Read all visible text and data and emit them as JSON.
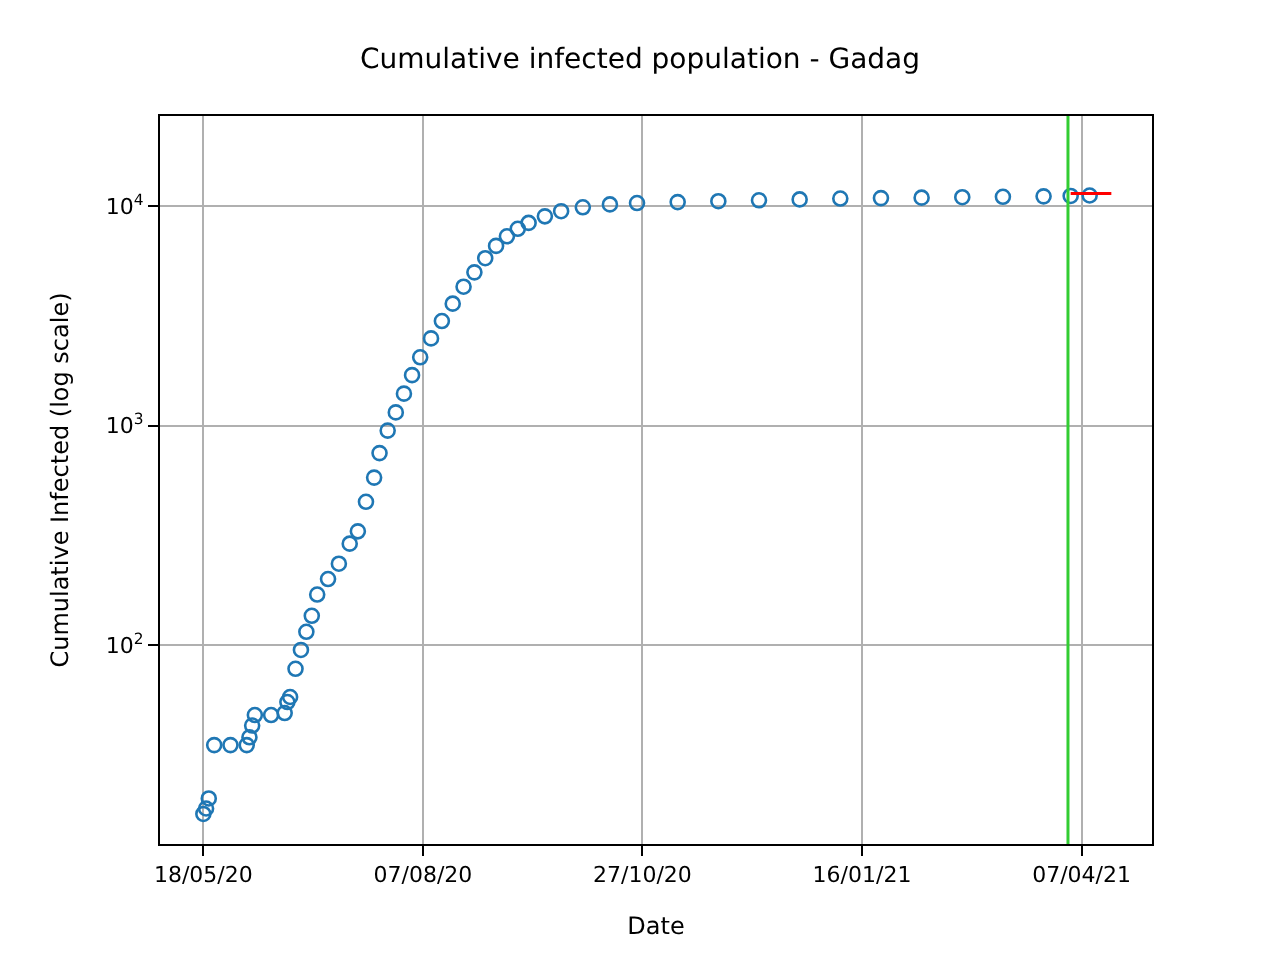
{
  "chart_data": {
    "type": "scatter",
    "title": "Cumulative infected population - Gadag",
    "xlabel": "Date",
    "ylabel": "Cumulative Infected (log scale)",
    "log": "y",
    "grid": true,
    "marker": "circle",
    "xlim": [
      "2020-05-02",
      "2021-05-03"
    ],
    "xticks": [
      {
        "value": "2020-05-18",
        "label": "18/05/20"
      },
      {
        "value": "2020-08-07",
        "label": "07/08/20"
      },
      {
        "value": "2020-10-27",
        "label": "27/10/20"
      },
      {
        "value": "2021-01-16",
        "label": "16/01/21"
      },
      {
        "value": "2021-04-07",
        "label": "07/04/21"
      }
    ],
    "ylim": [
      12.4,
      25800
    ],
    "yticks": [
      {
        "value": 100,
        "label": "10$^{2}$"
      },
      {
        "value": 1000,
        "label": "10$^{3}$"
      },
      {
        "value": 10000,
        "label": "10$^{4}$"
      }
    ],
    "series": [
      {
        "color": "#1f77b4",
        "x": [
          "2020-05-18",
          "2020-05-19",
          "2020-05-20",
          "2020-05-22",
          "2020-05-28",
          "2020-06-03",
          "2020-06-04",
          "2020-06-05",
          "2020-06-06",
          "2020-06-12",
          "2020-06-17",
          "2020-06-18",
          "2020-06-19",
          "2020-06-21",
          "2020-06-23",
          "2020-06-25",
          "2020-06-27",
          "2020-06-29",
          "2020-07-03",
          "2020-07-07",
          "2020-07-11",
          "2020-07-14",
          "2020-07-17",
          "2020-07-20",
          "2020-07-22",
          "2020-07-25",
          "2020-07-28",
          "2020-07-31",
          "2020-08-03",
          "2020-08-06",
          "2020-08-10",
          "2020-08-14",
          "2020-08-18",
          "2020-08-22",
          "2020-08-26",
          "2020-08-30",
          "2020-09-03",
          "2020-09-07",
          "2020-09-11",
          "2020-09-15",
          "2020-09-21",
          "2020-09-27",
          "2020-10-05",
          "2020-10-15",
          "2020-10-25",
          "2020-11-09",
          "2020-11-24",
          "2020-12-09",
          "2020-12-24",
          "2021-01-08",
          "2021-01-23",
          "2021-02-07",
          "2021-02-22",
          "2021-03-09",
          "2021-03-24",
          "2021-04-03",
          "2021-04-10"
        ],
        "values": [
          17,
          18,
          20,
          35,
          35,
          35,
          38,
          43,
          48,
          48,
          49,
          55,
          58,
          78,
          95,
          115,
          136,
          170,
          200,
          235,
          290,
          330,
          450,
          580,
          750,
          950,
          1150,
          1400,
          1700,
          2050,
          2500,
          3000,
          3600,
          4300,
          5000,
          5800,
          6600,
          7300,
          7900,
          8400,
          9000,
          9500,
          9900,
          10200,
          10350,
          10450,
          10550,
          10650,
          10750,
          10850,
          10900,
          10950,
          11000,
          11050,
          11100,
          11150,
          11200
        ]
      },
      {
        "type": "line",
        "color": "#ff0000",
        "marker": "none",
        "x": [
          "2021-04-03",
          "2021-04-18"
        ],
        "values": [
          11450,
          11450
        ]
      }
    ],
    "ref_lines": [
      {
        "axis": "x",
        "value": "2021-04-02",
        "color": "#32cd32",
        "line_style": "solid"
      }
    ]
  }
}
